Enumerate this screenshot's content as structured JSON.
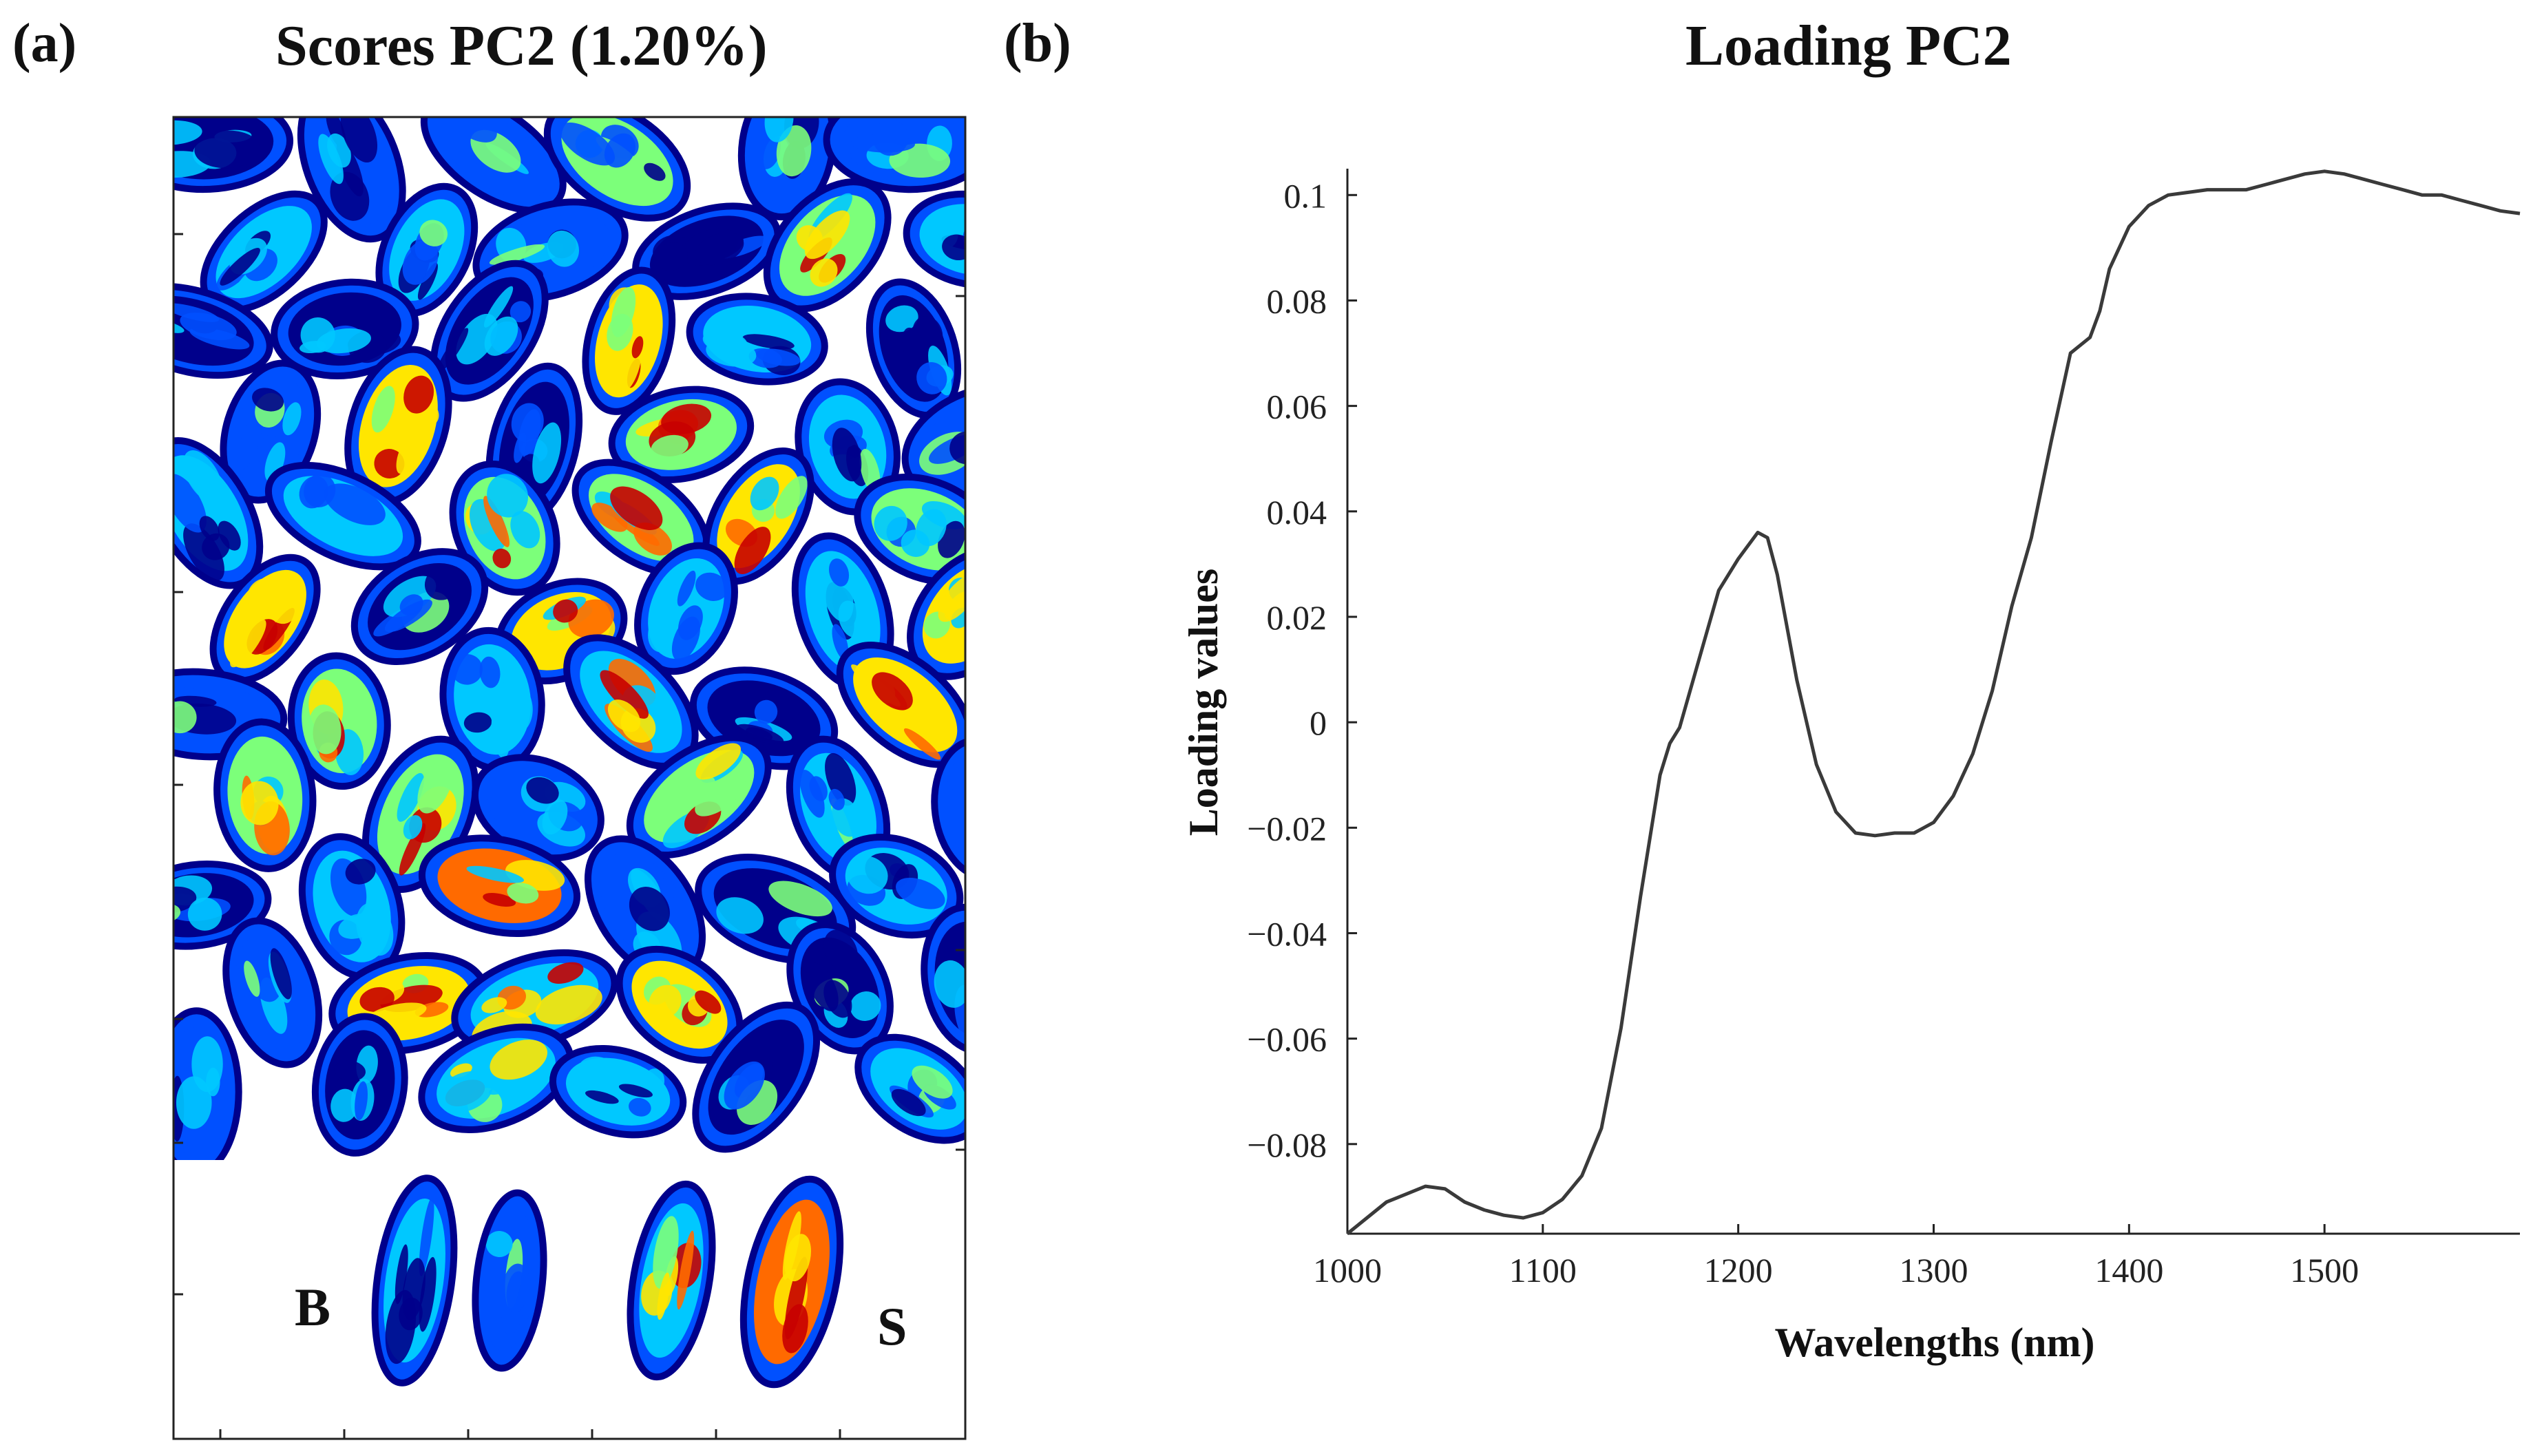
{
  "panel_a": {
    "label": "(a)",
    "title": "Scores PC2 (1.20%)",
    "sample_labels": [
      "B",
      "S"
    ],
    "colormap": [
      "#00008b",
      "#0050ff",
      "#00c8ff",
      "#7cff7a",
      "#ffe600",
      "#ff6a00",
      "#c80000"
    ]
  },
  "panel_b": {
    "label": "(b)",
    "title": "Loading PC2",
    "line_color": "#3a3a3a"
  },
  "chart_data": {
    "type": "line",
    "title": "Loading PC2",
    "xlabel": "Wavelengths (nm)",
    "ylabel": "Loading values",
    "xlim": [
      1000,
      1600
    ],
    "ylim": [
      -0.097,
      0.105
    ],
    "xticks": [
      1000,
      1100,
      1200,
      1300,
      1400,
      1500
    ],
    "yticks": [
      0.1,
      0.08,
      0.06,
      0.04,
      0.02,
      0,
      -0.02,
      -0.04,
      -0.06,
      -0.08
    ],
    "ytick_labels": [
      "0.1",
      "0.08",
      "0.06",
      "0.04",
      "0.02",
      "0",
      "−0.02",
      "−0.04",
      "−0.06",
      "−0.08"
    ],
    "grid": false,
    "series": [
      {
        "x": [
          1000,
          1010,
          1020,
          1030,
          1040,
          1050,
          1060,
          1070,
          1080,
          1090,
          1100,
          1110,
          1120,
          1130,
          1140,
          1150,
          1160,
          1165,
          1170,
          1180,
          1190,
          1200,
          1210,
          1215,
          1220,
          1230,
          1240,
          1250,
          1260,
          1270,
          1280,
          1290,
          1300,
          1310,
          1320,
          1330,
          1340,
          1350,
          1360,
          1370,
          1380,
          1385,
          1390,
          1400,
          1410,
          1420,
          1430,
          1440,
          1450,
          1460,
          1470,
          1480,
          1490,
          1500,
          1510,
          1520,
          1530,
          1540,
          1550,
          1560,
          1570,
          1580,
          1590,
          1600
        ],
        "y": [
          -0.097,
          -0.094,
          -0.091,
          -0.0895,
          -0.088,
          -0.0885,
          -0.091,
          -0.0925,
          -0.0935,
          -0.094,
          -0.093,
          -0.0905,
          -0.086,
          -0.077,
          -0.058,
          -0.033,
          -0.01,
          -0.004,
          -0.001,
          0.012,
          0.025,
          0.031,
          0.036,
          0.035,
          0.028,
          0.008,
          -0.008,
          -0.017,
          -0.021,
          -0.0215,
          -0.021,
          -0.021,
          -0.019,
          -0.014,
          -0.006,
          0.006,
          0.022,
          0.035,
          0.053,
          0.07,
          0.073,
          0.078,
          0.086,
          0.094,
          0.098,
          0.1,
          0.1005,
          0.101,
          0.101,
          0.101,
          0.102,
          0.103,
          0.104,
          0.1045,
          0.104,
          0.103,
          0.102,
          0.101,
          0.1,
          0.1,
          0.099,
          0.098,
          0.097,
          0.0965
        ]
      }
    ]
  }
}
